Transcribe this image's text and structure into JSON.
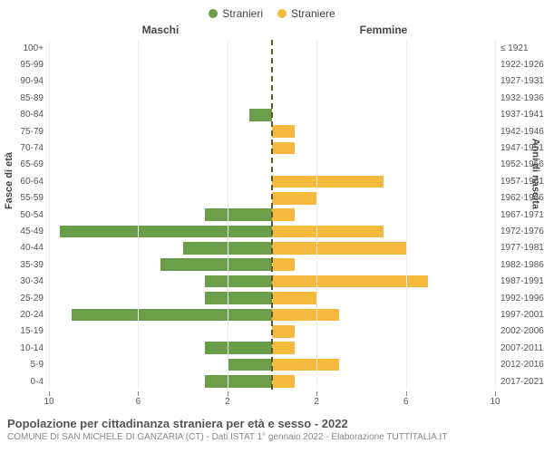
{
  "legend": {
    "male": {
      "label": "Stranieri",
      "color": "#6b9e4a"
    },
    "female": {
      "label": "Straniere",
      "color": "#f5b93e"
    }
  },
  "headers": {
    "left": "Maschi",
    "right": "Femmine"
  },
  "axes": {
    "left_label": "Fasce di età",
    "right_label": "Anni di nascita",
    "xmax": 10,
    "xticks_left": [
      10,
      6,
      2
    ],
    "xticks_right": [
      2,
      6,
      10
    ]
  },
  "rows": [
    {
      "age": "100+",
      "year": "≤ 1921",
      "m": 0,
      "f": 0
    },
    {
      "age": "95-99",
      "year": "1922-1926",
      "m": 0,
      "f": 0
    },
    {
      "age": "90-94",
      "year": "1927-1931",
      "m": 0,
      "f": 0
    },
    {
      "age": "85-89",
      "year": "1932-1936",
      "m": 0,
      "f": 0
    },
    {
      "age": "80-84",
      "year": "1937-1941",
      "m": 1,
      "f": 0
    },
    {
      "age": "75-79",
      "year": "1942-1946",
      "m": 0,
      "f": 1
    },
    {
      "age": "70-74",
      "year": "1947-1951",
      "m": 0,
      "f": 1
    },
    {
      "age": "65-69",
      "year": "1952-1956",
      "m": 0,
      "f": 0
    },
    {
      "age": "60-64",
      "year": "1957-1961",
      "m": 0,
      "f": 5
    },
    {
      "age": "55-59",
      "year": "1962-1966",
      "m": 0,
      "f": 2
    },
    {
      "age": "50-54",
      "year": "1967-1971",
      "m": 3,
      "f": 1
    },
    {
      "age": "45-49",
      "year": "1972-1976",
      "m": 9.5,
      "f": 5
    },
    {
      "age": "40-44",
      "year": "1977-1981",
      "m": 4,
      "f": 6
    },
    {
      "age": "35-39",
      "year": "1982-1986",
      "m": 5,
      "f": 1
    },
    {
      "age": "30-34",
      "year": "1987-1991",
      "m": 3,
      "f": 7
    },
    {
      "age": "25-29",
      "year": "1992-1996",
      "m": 3,
      "f": 2
    },
    {
      "age": "20-24",
      "year": "1997-2001",
      "m": 9,
      "f": 3
    },
    {
      "age": "15-19",
      "year": "2002-2006",
      "m": 0,
      "f": 1
    },
    {
      "age": "10-14",
      "year": "2007-2011",
      "m": 3,
      "f": 1
    },
    {
      "age": "5-9",
      "year": "2012-2016",
      "m": 2,
      "f": 3
    },
    {
      "age": "0-4",
      "year": "2017-2021",
      "m": 3,
      "f": 1
    }
  ],
  "footer": {
    "title": "Popolazione per cittadinanza straniera per età e sesso - 2022",
    "subtitle": "COMUNE DI SAN MICHELE DI GANZARIA (CT) - Dati ISTAT 1° gennaio 2022 - Elaborazione TUTTITALIA.IT"
  },
  "style": {
    "grid_color": "#eeeeee",
    "center_line_color": "#5a5a2a",
    "font_family": "Arial, Helvetica, sans-serif",
    "age_label_fontsize": 10,
    "header_fontsize": 12
  }
}
